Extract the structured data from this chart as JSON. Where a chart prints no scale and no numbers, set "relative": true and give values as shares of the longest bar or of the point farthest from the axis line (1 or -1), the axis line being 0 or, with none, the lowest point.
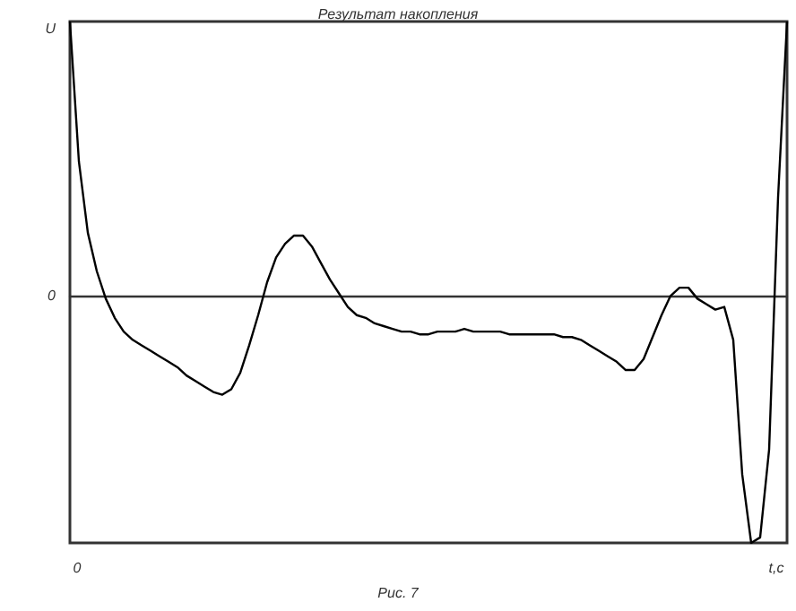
{
  "chart_data": {
    "type": "line",
    "title": "Результат накопления",
    "xlabel": "t,c",
    "ylabel": "U",
    "annotations": [
      "0",
      "0",
      "Рис. 7"
    ],
    "relative": true,
    "marker": "none",
    "line_style": "solid",
    "categories": [
      null,
      null,
      null,
      null,
      null,
      null,
      null,
      null,
      null,
      null,
      null,
      null,
      null,
      null,
      null,
      null,
      null,
      null,
      null,
      null,
      null,
      null,
      null,
      null,
      null,
      null,
      null,
      null,
      null,
      null,
      null,
      null,
      null,
      null,
      null,
      null,
      null,
      null,
      null,
      null,
      null,
      null,
      null,
      null,
      null,
      null,
      null,
      null,
      null,
      null,
      null,
      null,
      null,
      null,
      null,
      null,
      null,
      null,
      null,
      null,
      null,
      null,
      null,
      null,
      null,
      null,
      null,
      null,
      null,
      null,
      null,
      null,
      null,
      null,
      null,
      null,
      null,
      null,
      null,
      null,
      null
    ],
    "series": [
      {
        "color": "#000000",
        "values": [
          1.0,
          0.49,
          0.23,
          0.09,
          -0.01,
          -0.08,
          -0.13,
          -0.16,
          -0.18,
          -0.2,
          -0.22,
          -0.24,
          -0.26,
          -0.29,
          -0.31,
          -0.33,
          -0.35,
          -0.36,
          -0.34,
          -0.28,
          -0.18,
          -0.07,
          0.05,
          0.14,
          0.19,
          0.22,
          0.22,
          0.18,
          0.12,
          0.06,
          0.01,
          -0.04,
          -0.07,
          -0.08,
          -0.1,
          -0.11,
          -0.12,
          -0.13,
          -0.13,
          -0.14,
          -0.14,
          -0.13,
          -0.13,
          -0.13,
          -0.12,
          -0.13,
          -0.13,
          -0.13,
          -0.13,
          -0.14,
          -0.14,
          -0.14,
          -0.14,
          -0.14,
          -0.14,
          -0.15,
          -0.15,
          -0.16,
          -0.18,
          -0.2,
          -0.22,
          -0.24,
          -0.27,
          -0.27,
          -0.23,
          -0.15,
          -0.07,
          0,
          0.03,
          0.03,
          -0.01,
          -0.03,
          -0.05,
          -0.04,
          -0.16,
          -0.65,
          -0.9,
          -0.88,
          -0.56,
          0.36,
          1.0
        ]
      }
    ]
  }
}
